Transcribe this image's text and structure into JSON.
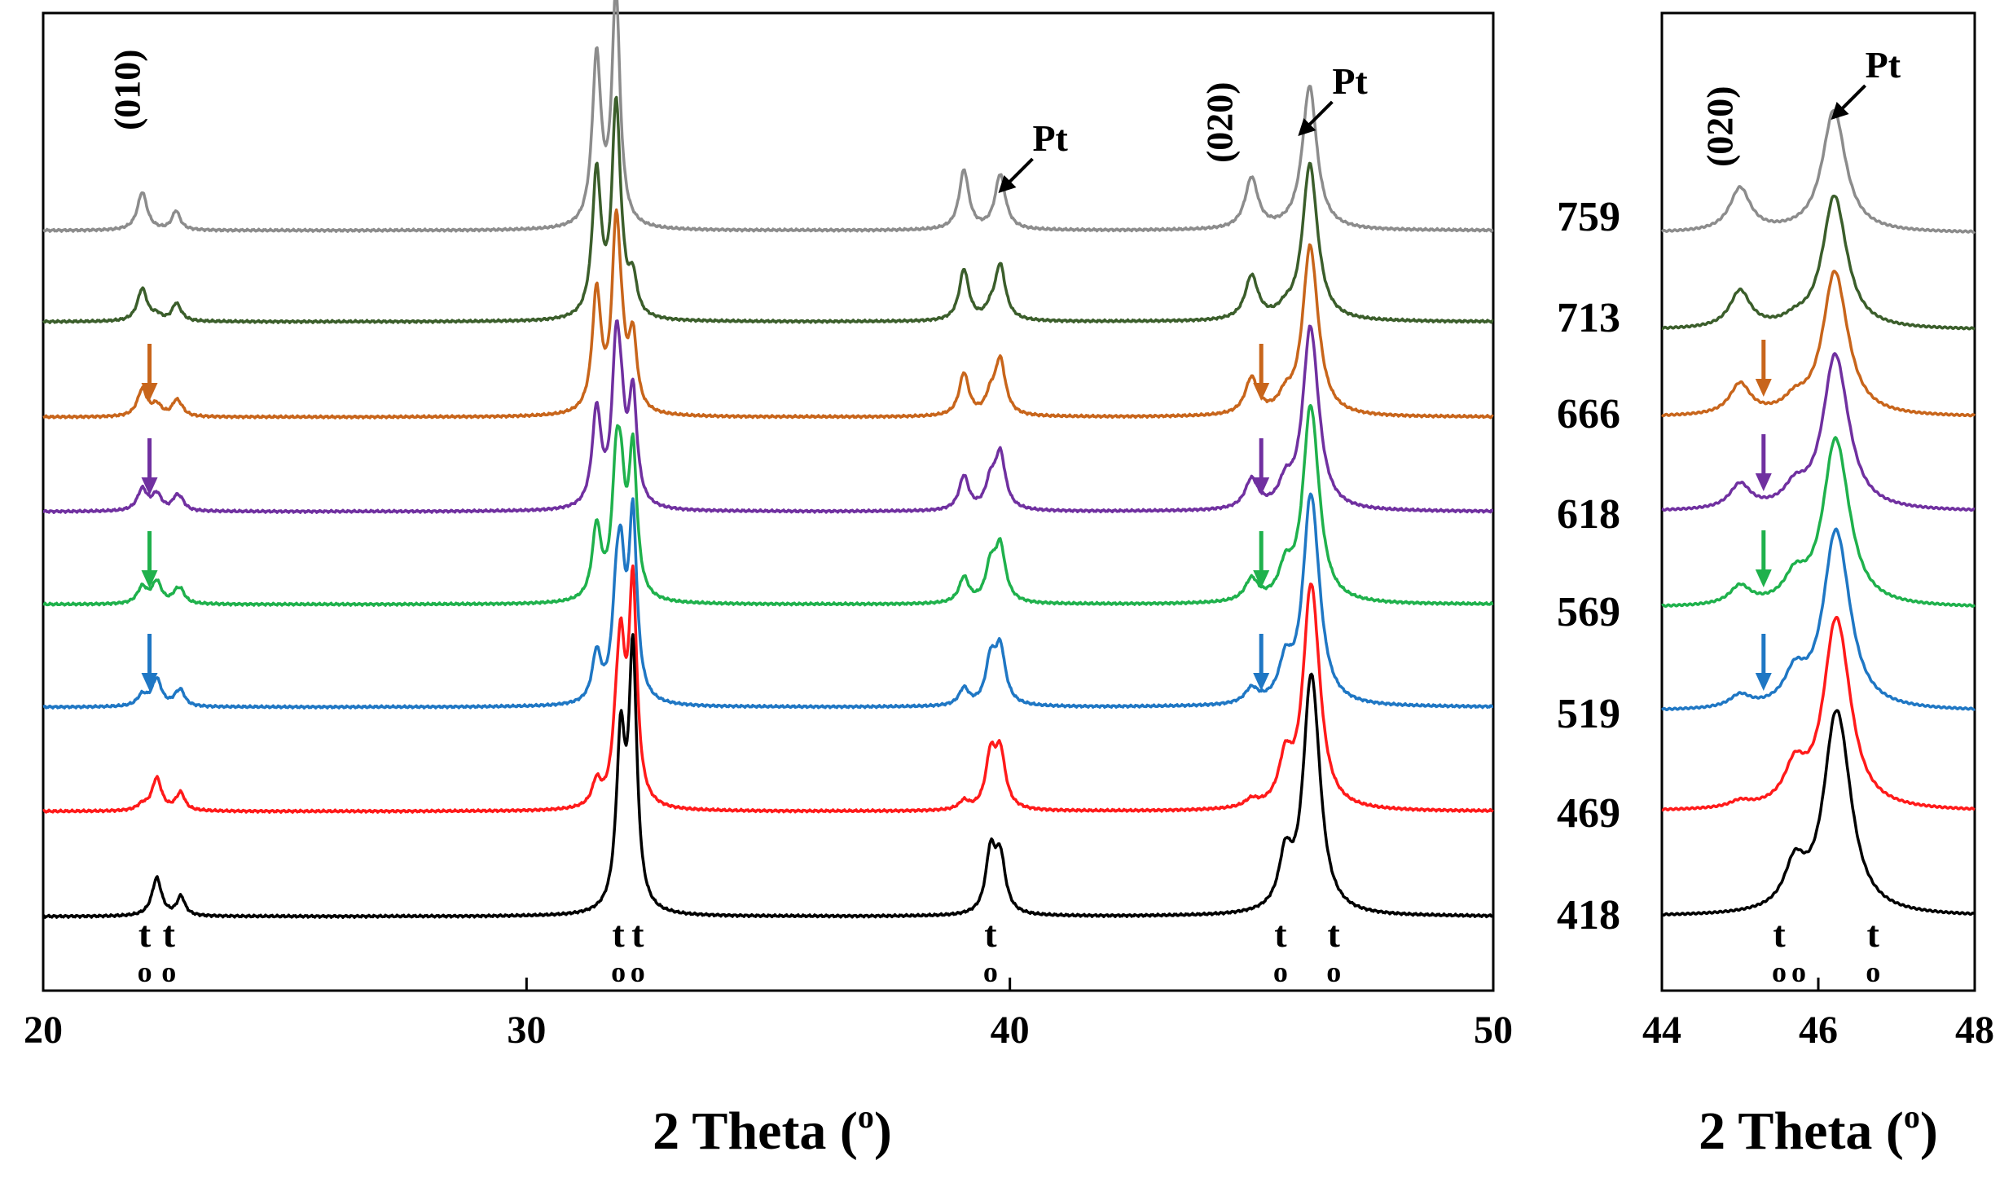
{
  "chart_data": {
    "type": "line",
    "xlabel_main": "2 Theta (",
    "xlabel_sup": "o",
    "xlabel_close": ")",
    "panels": [
      {
        "name": "main",
        "xlim": [
          20,
          50
        ],
        "xticks": [
          "20",
          "30",
          "40",
          "50"
        ]
      },
      {
        "name": "zoom",
        "xlim": [
          44,
          48
        ],
        "xticks": [
          "44",
          "46",
          "48"
        ]
      }
    ],
    "series": [
      {
        "name": "759",
        "color": "#8c8c8c"
      },
      {
        "name": "713",
        "color": "#3b5e2b"
      },
      {
        "name": "666",
        "color": "#c8651b"
      },
      {
        "name": "618",
        "color": "#7030a0"
      },
      {
        "name": "569",
        "color": "#1fb14c"
      },
      {
        "name": "519",
        "color": "#1f77c4"
      },
      {
        "name": "469",
        "color": "#ff1a1a"
      },
      {
        "name": "418",
        "color": "#000000"
      }
    ],
    "peaks": [
      {
        "pos": 22.05,
        "h": 0.09,
        "w": 0.12,
        "p": "o"
      },
      {
        "pos": 22.75,
        "h": 0.045,
        "w": 0.1,
        "p": "o"
      },
      {
        "pos": 31.45,
        "h": 0.4,
        "w": 0.11,
        "p": "o"
      },
      {
        "pos": 31.85,
        "h": 0.55,
        "w": 0.1,
        "p": "o"
      },
      {
        "pos": 39.05,
        "h": 0.14,
        "w": 0.12,
        "p": "o"
      },
      {
        "pos": 39.8,
        "h": 0.13,
        "w": 0.13,
        "p": "pt"
      },
      {
        "pos": 45.0,
        "h": 0.12,
        "w": 0.16,
        "p": "o"
      },
      {
        "pos": 46.2,
        "h": 0.34,
        "w": 0.18,
        "p": "pt"
      },
      {
        "pos": 22.35,
        "h": 0.09,
        "w": 0.12,
        "p": "t"
      },
      {
        "pos": 22.85,
        "h": 0.045,
        "w": 0.1,
        "p": "t"
      },
      {
        "pos": 31.95,
        "h": 0.4,
        "w": 0.11,
        "p": "t"
      },
      {
        "pos": 32.2,
        "h": 0.6,
        "w": 0.1,
        "p": "t"
      },
      {
        "pos": 39.6,
        "h": 0.14,
        "w": 0.12,
        "p": "t"
      },
      {
        "pos": 45.7,
        "h": 0.12,
        "w": 0.16,
        "p": "t"
      },
      {
        "pos": 46.3,
        "h": 0.26,
        "w": 0.2,
        "p": "t"
      }
    ],
    "peak_labels": [
      {
        "text": "(010)",
        "x": 22.0
      },
      {
        "text": "(020)",
        "x": 44.6
      },
      {
        "text": "Pt",
        "x": 40.3
      },
      {
        "text": "Pt",
        "x": 46.5
      }
    ],
    "zoom_peak_labels": [
      {
        "text": "(020)",
        "x": 44.9
      },
      {
        "text": "Pt",
        "x": 46.6
      }
    ],
    "phase_marks_main": [
      {
        "t": "t",
        "o": "o",
        "x": 22.1
      },
      {
        "t": "t",
        "o": "o",
        "x": 22.6
      },
      {
        "t": "t",
        "o": "o",
        "x": 31.9
      },
      {
        "t": "t",
        "o": "o",
        "x": 32.3
      },
      {
        "t": "t",
        "o": "o",
        "x": 39.6
      },
      {
        "t": "t",
        "o": "o",
        "x": 45.6
      },
      {
        "t": "t",
        "o": "o",
        "x": 46.7
      }
    ],
    "phase_marks_zoom": [
      {
        "t": "t",
        "o": "o",
        "x": 45.5
      },
      {
        "t": "",
        "o": "o",
        "x": 45.75
      },
      {
        "t": "t",
        "o": "o",
        "x": 46.7
      }
    ]
  }
}
